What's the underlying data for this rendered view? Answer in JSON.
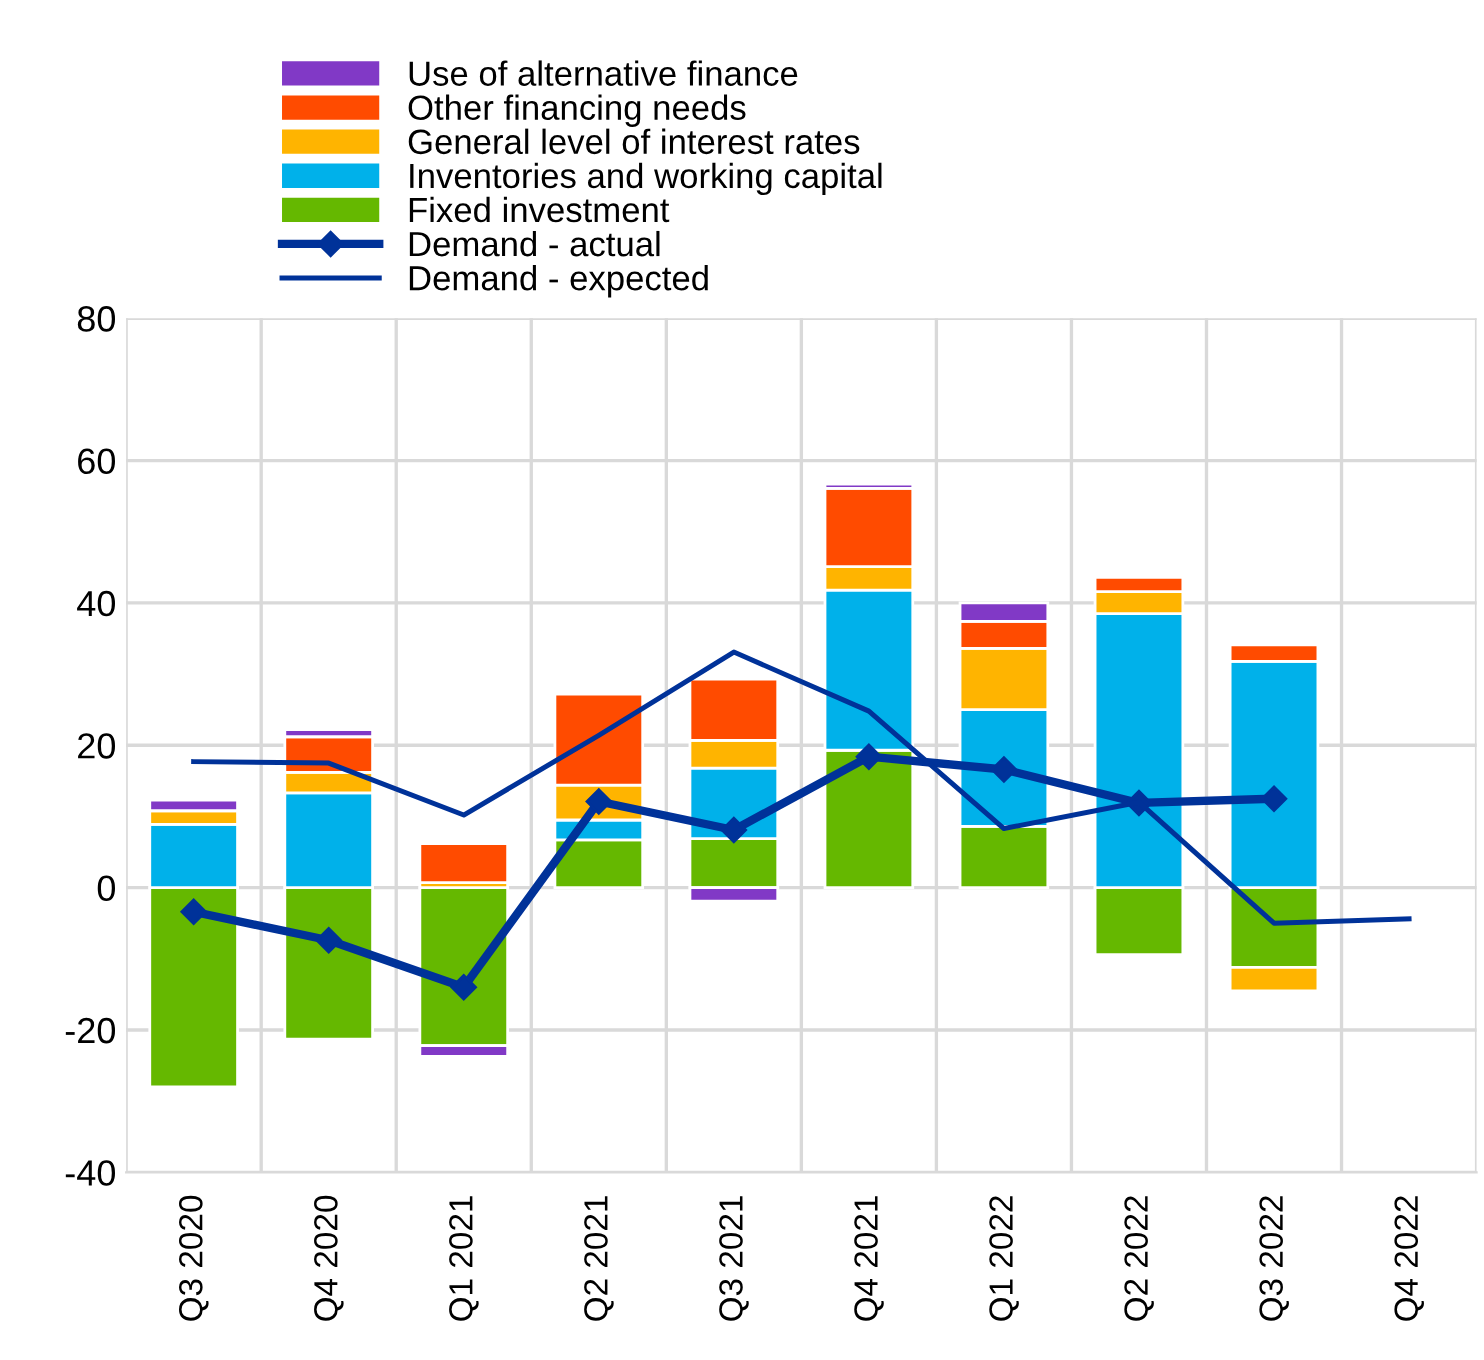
{
  "chart_data": {
    "type": "bar",
    "stacked": true,
    "categories": [
      "Q3 2020",
      "Q4 2020",
      "Q1 2021",
      "Q2 2021",
      "Q3 2021",
      "Q4 2021",
      "Q1 2022",
      "Q2 2022",
      "Q3 2022",
      "Q4 2022"
    ],
    "series": [
      {
        "name": "Fixed investment",
        "color": "#65b800",
        "values": [
          -28.0,
          -21.3,
          -22.2,
          6.7,
          6.9,
          19.3,
          8.6,
          -9.4,
          -11.2,
          null
        ]
      },
      {
        "name": "Inventories and working capital",
        "color": "#00b1ea",
        "values": [
          8.9,
          13.3,
          null,
          2.8,
          9.9,
          22.5,
          16.4,
          38.5,
          31.8,
          null
        ]
      },
      {
        "name": "General level of interest rates",
        "color": "#ffb400",
        "values": [
          1.9,
          2.9,
          0.7,
          4.9,
          3.9,
          3.3,
          8.6,
          3.1,
          -3.3,
          null
        ]
      },
      {
        "name": "Other financing needs",
        "color": "#ff4b00",
        "values": [
          null,
          5.0,
          5.5,
          12.8,
          8.6,
          11.0,
          3.8,
          2.0,
          2.3,
          null
        ]
      },
      {
        "name": "Use of alternative finance",
        "color": "#8139c6",
        "values": [
          1.5,
          1.0,
          -1.5,
          null,
          -1.9,
          0.6,
          2.6,
          null,
          null,
          null
        ]
      },
      {
        "name": "Demand - actual",
        "type": "line",
        "color": "#003299",
        "marker": "diamond",
        "values": [
          -3.4,
          -7.4,
          -14.0,
          12.1,
          8.1,
          18.4,
          16.6,
          11.9,
          12.5,
          null
        ]
      },
      {
        "name": "Demand - expected",
        "type": "line",
        "color": "#003299",
        "values": [
          17.7,
          17.5,
          10.2,
          21.4,
          33.1,
          24.8,
          8.3,
          12.0,
          -5.0,
          -4.4
        ]
      }
    ],
    "ylim": [
      -40,
      80
    ],
    "yticks": [
      -40,
      -20,
      0,
      20,
      40,
      60,
      80
    ],
    "grid": true,
    "legend": "top"
  }
}
